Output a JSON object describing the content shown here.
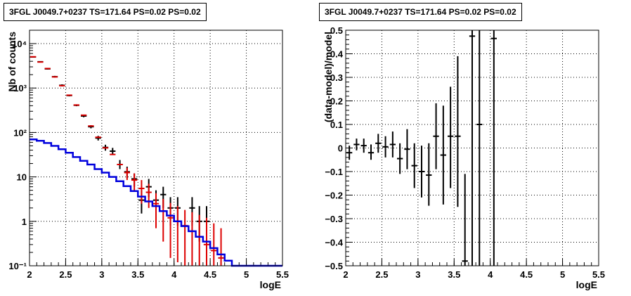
{
  "chart_data": [
    {
      "type": "scatter",
      "title": "3FGL J0049.7+0237 TS=171.64 PS=0.02 PS=0.02",
      "xlabel": "logE",
      "ylabel": "Nb of counts",
      "xlim": [
        2,
        5.5
      ],
      "ylim": [
        0.1,
        20000
      ],
      "yscale": "log",
      "grid": true,
      "xticks": [
        "2",
        "2.5",
        "3",
        "3.5",
        "4",
        "4.5",
        "5",
        "5.5"
      ],
      "yticks": [
        {
          "v": 0.1,
          "label": "10⁻¹"
        },
        {
          "v": 1,
          "label": "1"
        },
        {
          "v": 10,
          "label": "10"
        },
        {
          "v": 100,
          "label": "10²"
        },
        {
          "v": 1000,
          "label": "10³"
        },
        {
          "v": 10000,
          "label": "10⁴"
        }
      ],
      "series": [
        {
          "kind": "data-points",
          "color": "#000000",
          "points": [
            {
              "x": 2.05,
              "y": 5000,
              "lo": 4860,
              "hi": 5140
            },
            {
              "x": 2.15,
              "y": 3900,
              "lo": 3780,
              "hi": 4020
            },
            {
              "x": 2.25,
              "y": 2700,
              "lo": 2600,
              "hi": 2800
            },
            {
              "x": 2.35,
              "y": 1800,
              "lo": 1720,
              "hi": 1880
            },
            {
              "x": 2.45,
              "y": 1150,
              "lo": 1090,
              "hi": 1210
            },
            {
              "x": 2.55,
              "y": 680,
              "lo": 650,
              "hi": 710
            },
            {
              "x": 2.65,
              "y": 410,
              "lo": 390,
              "hi": 430
            },
            {
              "x": 2.75,
              "y": 235,
              "lo": 220,
              "hi": 250
            },
            {
              "x": 2.85,
              "y": 135,
              "lo": 124,
              "hi": 146
            },
            {
              "x": 2.95,
              "y": 75,
              "lo": 66,
              "hi": 84
            },
            {
              "x": 3.05,
              "y": 46,
              "lo": 39,
              "hi": 53
            },
            {
              "x": 3.15,
              "y": 38,
              "lo": 32,
              "hi": 45
            },
            {
              "x": 3.25,
              "y": 19,
              "lo": 15,
              "hi": 24
            },
            {
              "x": 3.35,
              "y": 13,
              "lo": 9.5,
              "hi": 17
            },
            {
              "x": 3.45,
              "y": 9,
              "lo": 6,
              "hi": 12
            },
            {
              "x": 3.55,
              "y": 3,
              "lo": 1.5,
              "hi": 5
            },
            {
              "x": 3.65,
              "y": 6,
              "lo": 3.5,
              "hi": 9
            },
            {
              "x": 3.75,
              "y": 3,
              "lo": 1.5,
              "hi": 5
            },
            {
              "x": 3.85,
              "y": 4,
              "lo": 2,
              "hi": 6
            },
            {
              "x": 3.95,
              "y": 2,
              "lo": 0.8,
              "hi": 3.5
            },
            {
              "x": 4.05,
              "y": 2,
              "lo": 0.8,
              "hi": 3.5
            },
            {
              "x": 4.25,
              "y": 2,
              "lo": 0.8,
              "hi": 3.5
            },
            {
              "x": 4.35,
              "y": 1,
              "lo": 0.35,
              "hi": 2.2
            },
            {
              "x": 4.45,
              "y": 1,
              "lo": 0.35,
              "hi": 2.2
            }
          ]
        },
        {
          "kind": "model-points",
          "color": "#dd0000",
          "points": [
            {
              "x": 2.05,
              "y": 5050
            },
            {
              "x": 2.15,
              "y": 3850
            },
            {
              "x": 2.25,
              "y": 2750
            },
            {
              "x": 2.35,
              "y": 1780
            },
            {
              "x": 2.45,
              "y": 1130
            },
            {
              "x": 2.55,
              "y": 690
            },
            {
              "x": 2.65,
              "y": 415
            },
            {
              "x": 2.75,
              "y": 245
            },
            {
              "x": 2.85,
              "y": 140
            },
            {
              "x": 2.95,
              "y": 78
            },
            {
              "x": 3.05,
              "y": 45
            },
            {
              "x": 3.15,
              "y": 32
            },
            {
              "x": 3.25,
              "y": 19
            },
            {
              "x": 3.35,
              "y": 12.5,
              "lo": 8.5,
              "hi": 16
            },
            {
              "x": 3.45,
              "y": 8.5,
              "lo": 5,
              "hi": 12
            },
            {
              "x": 3.55,
              "y": 5.5,
              "lo": 2.5,
              "hi": 8.5
            },
            {
              "x": 3.65,
              "y": 4.5,
              "lo": 2,
              "hi": 7
            },
            {
              "x": 3.75,
              "y": 2.5,
              "lo": 0.7,
              "hi": 4.3
            },
            {
              "x": 3.85,
              "y": 1.7,
              "lo": 0.35,
              "hi": 3.2
            },
            {
              "x": 3.95,
              "y": 1.2,
              "lo": 0.15,
              "hi": 2.6
            },
            {
              "x": 4.05,
              "y": 1.0,
              "lo": 0.12,
              "hi": 2.2
            },
            {
              "x": 4.15,
              "y": 0.8,
              "lo": 0.1,
              "hi": 1.8
            },
            {
              "x": 4.25,
              "y": 0.6,
              "lo": 0.1,
              "hi": 1.6
            },
            {
              "x": 4.35,
              "y": 0.45,
              "lo": 0.1,
              "hi": 1.4
            },
            {
              "x": 4.45,
              "y": 0.3,
              "lo": 0.1,
              "hi": 1.2
            },
            {
              "x": 4.55,
              "y": 0.22,
              "lo": 0.1,
              "hi": 0.9
            },
            {
              "x": 4.65,
              "y": 0.15,
              "lo": 0.1,
              "hi": 0.7
            }
          ]
        },
        {
          "kind": "step-histogram",
          "color": "#0000dd",
          "edges": [
            2.0,
            2.1,
            2.2,
            2.3,
            2.4,
            2.5,
            2.6,
            2.7,
            2.8,
            2.9,
            3.0,
            3.1,
            3.2,
            3.3,
            3.4,
            3.5,
            3.6,
            3.7,
            3.8,
            3.9,
            4.0,
            4.1,
            4.2,
            4.3,
            4.4,
            4.5,
            4.6,
            4.7,
            4.8,
            5.5
          ],
          "values": [
            70,
            65,
            58,
            50,
            42,
            35,
            28,
            23,
            19,
            15,
            12.5,
            10,
            8,
            6.2,
            4.8,
            3.6,
            2.8,
            2.2,
            1.7,
            1.35,
            1.0,
            0.78,
            0.6,
            0.45,
            0.35,
            0.25,
            0.18,
            0.13,
            0.1
          ]
        }
      ]
    },
    {
      "type": "scatter",
      "title": "3FGL J0049.7+0237 TS=171.64 PS=0.02 PS=0.02",
      "xlabel": "logE",
      "ylabel": "(data-model)/model",
      "xlim": [
        2,
        5.5
      ],
      "ylim": [
        -0.5,
        0.5
      ],
      "grid": true,
      "xticks": [
        "2",
        "2.5",
        "3",
        "3.5",
        "4",
        "4.5",
        "5",
        "5.5"
      ],
      "yticks": [
        "−0.5",
        "−0.4",
        "−0.3",
        "−0.2",
        "−0.1",
        "0",
        "0.1",
        "0.2",
        "0.3",
        "0.4",
        "0.5"
      ],
      "series": [
        {
          "kind": "residuals",
          "color": "#000000",
          "points": [
            {
              "x": 2.05,
              "y": -0.02,
              "lo": -0.05,
              "hi": 0.01
            },
            {
              "x": 2.15,
              "y": 0.015,
              "lo": -0.01,
              "hi": 0.04
            },
            {
              "x": 2.25,
              "y": 0.01,
              "lo": -0.02,
              "hi": 0.04
            },
            {
              "x": 2.35,
              "y": -0.02,
              "lo": -0.05,
              "hi": 0.015
            },
            {
              "x": 2.45,
              "y": 0.02,
              "lo": -0.02,
              "hi": 0.06
            },
            {
              "x": 2.55,
              "y": 0.005,
              "lo": -0.04,
              "hi": 0.05
            },
            {
              "x": 2.65,
              "y": 0.015,
              "lo": -0.04,
              "hi": 0.07
            },
            {
              "x": 2.75,
              "y": -0.045,
              "lo": -0.11,
              "hi": 0.02
            },
            {
              "x": 2.85,
              "y": -0.005,
              "lo": -0.09,
              "hi": 0.08
            },
            {
              "x": 2.95,
              "y": -0.075,
              "lo": -0.17,
              "hi": 0.02
            },
            {
              "x": 3.05,
              "y": -0.1,
              "lo": -0.21,
              "hi": 0.01
            },
            {
              "x": 3.15,
              "y": -0.115,
              "lo": -0.245,
              "hi": 0.02
            },
            {
              "x": 3.25,
              "y": 0.05,
              "lo": -0.09,
              "hi": 0.19
            },
            {
              "x": 3.35,
              "y": -0.03,
              "lo": -0.24,
              "hi": 0.18
            },
            {
              "x": 3.45,
              "y": 0.05,
              "lo": -0.17,
              "hi": 0.26
            },
            {
              "x": 3.55,
              "y": 0.05,
              "lo": -0.25,
              "hi": 0.39
            },
            {
              "x": 3.65,
              "y": -0.48,
              "lo": -0.5,
              "hi": -0.11
            },
            {
              "x": 3.75,
              "y": 0.475,
              "lo": -0.5,
              "hi": 0.5
            },
            {
              "x": 3.85,
              "y": 0.1,
              "lo": -0.5,
              "hi": 0.5
            },
            {
              "x": 4.05,
              "y": 0.465,
              "lo": -0.5,
              "hi": 0.5
            }
          ]
        }
      ]
    }
  ]
}
